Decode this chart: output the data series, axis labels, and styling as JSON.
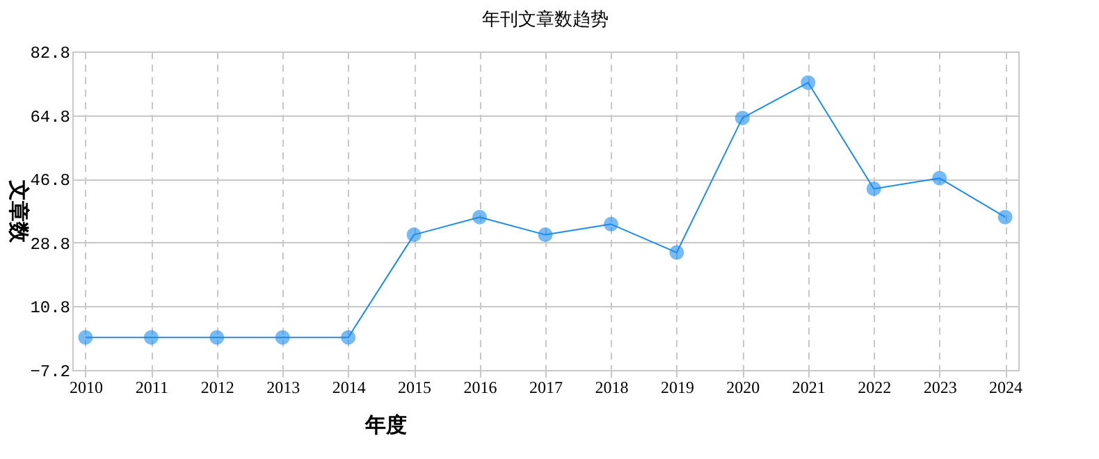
{
  "chart_data": {
    "type": "line",
    "title": "年刊文章数趋势",
    "xlabel": "年度",
    "ylabel": "文章数",
    "categories": [
      "2010",
      "2011",
      "2012",
      "2013",
      "2014",
      "2015",
      "2016",
      "2017",
      "2018",
      "2019",
      "2020",
      "2021",
      "2022",
      "2023",
      "2024"
    ],
    "series": [
      {
        "color": "#1a8cf0",
        "values": [
          2,
          2,
          2,
          2,
          2,
          31,
          36,
          31,
          34,
          26,
          64,
          74,
          44,
          47,
          36
        ]
      }
    ],
    "ylim": [
      -7.2,
      82.8
    ],
    "yticks": [
      -7.2,
      10.8,
      28.8,
      46.8,
      64.8,
      82.8
    ],
    "grid": true,
    "marker": "circle"
  }
}
